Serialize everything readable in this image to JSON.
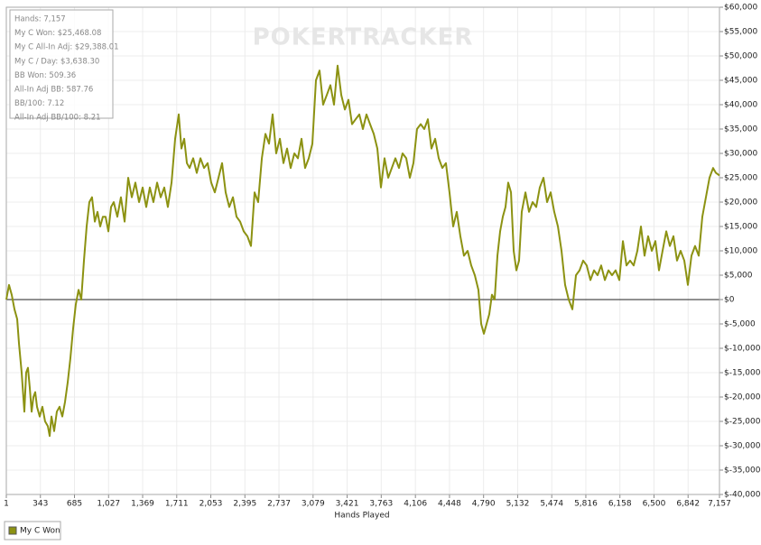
{
  "chart_data": {
    "type": "line",
    "watermark": "POKERTRACKER",
    "stats": [
      "Hands: 7,157",
      "My C Won: $25,468.08",
      "My C All-In Adj: $29,388.01",
      "My C / Day: $3,638.30",
      "BB Won: 509.36",
      "All-In Adj BB: 587.76",
      "BB/100: 7.12",
      "All-In Adj BB/100: 8.21"
    ],
    "x_label": "Hands Played",
    "x": [
      1,
      28,
      55,
      83,
      110,
      128,
      155,
      182,
      200,
      218,
      236,
      255,
      273,
      291,
      309,
      336,
      363,
      390,
      418,
      436,
      454,
      481,
      508,
      535,
      563,
      590,
      617,
      644,
      671,
      698,
      726,
      753,
      780,
      807,
      834,
      861,
      889,
      916,
      943,
      970,
      997,
      1025,
      1052,
      1079,
      1115,
      1151,
      1188,
      1224,
      1260,
      1296,
      1333,
      1369,
      1405,
      1441,
      1477,
      1514,
      1550,
      1586,
      1622,
      1659,
      1695,
      1731,
      1758,
      1786,
      1813,
      1840,
      1876,
      1912,
      1949,
      1985,
      2021,
      2057,
      2093,
      2130,
      2166,
      2202,
      2238,
      2275,
      2311,
      2347,
      2383,
      2420,
      2456,
      2492,
      2528,
      2565,
      2601,
      2637,
      2673,
      2709,
      2746,
      2782,
      2818,
      2854,
      2891,
      2927,
      2963,
      2999,
      3036,
      3072,
      3108,
      3144,
      3180,
      3217,
      3253,
      3289,
      3325,
      3362,
      3398,
      3434,
      3470,
      3506,
      3543,
      3579,
      3615,
      3651,
      3688,
      3724,
      3760,
      3796,
      3833,
      3869,
      3905,
      3941,
      3977,
      4014,
      4050,
      4086,
      4122,
      4159,
      4195,
      4231,
      4267,
      4304,
      4340,
      4376,
      4412,
      4448,
      4485,
      4521,
      4557,
      4593,
      4630,
      4666,
      4702,
      4738,
      4766,
      4793,
      4820,
      4847,
      4874,
      4901,
      4929,
      4956,
      4983,
      5010,
      5037,
      5065,
      5092,
      5119,
      5146,
      5173,
      5210,
      5246,
      5282,
      5318,
      5354,
      5391,
      5427,
      5463,
      5499,
      5536,
      5572,
      5608,
      5644,
      5681,
      5717,
      5753,
      5789,
      5825,
      5862,
      5898,
      5934,
      5970,
      6007,
      6043,
      6079,
      6115,
      6152,
      6188,
      6224,
      6260,
      6296,
      6333,
      6369,
      6405,
      6441,
      6478,
      6514,
      6550,
      6586,
      6623,
      6659,
      6695,
      6731,
      6767,
      6804,
      6840,
      6876,
      6912,
      6949,
      6985,
      7021,
      7057,
      7093,
      7121,
      7157
    ],
    "series": [
      {
        "name": "My C Won",
        "color": "#8c9212",
        "values": [
          0,
          3000,
          1000,
          -2000,
          -4000,
          -9000,
          -15000,
          -23000,
          -15000,
          -14000,
          -18000,
          -23000,
          -20000,
          -19000,
          -22000,
          -24000,
          -22000,
          -25000,
          -26000,
          -28000,
          -24000,
          -27000,
          -23000,
          -22000,
          -24000,
          -21000,
          -17000,
          -12000,
          -6000,
          -1000,
          2000,
          0,
          8000,
          15000,
          20000,
          21000,
          16000,
          18000,
          15000,
          17000,
          17000,
          14000,
          19000,
          20000,
          17000,
          21000,
          16000,
          25000,
          21000,
          24000,
          20000,
          23000,
          19000,
          23000,
          20000,
          24000,
          21000,
          23000,
          19000,
          24000,
          33000,
          38000,
          31000,
          33000,
          28000,
          27000,
          29000,
          26000,
          29000,
          27000,
          28000,
          24000,
          22000,
          25000,
          28000,
          22000,
          19000,
          21000,
          17000,
          16000,
          14000,
          13000,
          11000,
          22000,
          20000,
          29000,
          34000,
          32000,
          38000,
          30000,
          33000,
          28000,
          31000,
          27000,
          30000,
          29000,
          33000,
          27000,
          29000,
          32000,
          45000,
          47000,
          40000,
          42000,
          44000,
          40000,
          48000,
          42000,
          39000,
          41000,
          36000,
          37000,
          38000,
          35000,
          38000,
          36000,
          34000,
          31000,
          23000,
          29000,
          25000,
          27000,
          29000,
          27000,
          30000,
          29000,
          25000,
          28000,
          35000,
          36000,
          35000,
          37000,
          31000,
          33000,
          29000,
          27000,
          28000,
          22000,
          15000,
          18000,
          13000,
          9000,
          10000,
          7000,
          5000,
          2000,
          -5000,
          -7000,
          -5000,
          -3000,
          1000,
          0,
          9000,
          14000,
          17000,
          19000,
          24000,
          22000,
          10000,
          6000,
          8000,
          18000,
          22000,
          18000,
          20000,
          19000,
          23000,
          25000,
          20000,
          22000,
          18000,
          15000,
          10000,
          3000,
          0,
          -2000,
          5000,
          6000,
          8000,
          7000,
          4000,
          6000,
          5000,
          7000,
          4000,
          6000,
          5000,
          6000,
          4000,
          12000,
          7000,
          8000,
          7000,
          10000,
          15000,
          9000,
          13000,
          10000,
          12000,
          6000,
          10000,
          14000,
          11000,
          13000,
          8000,
          10000,
          8000,
          3000,
          9000,
          11000,
          9000,
          17000,
          21000,
          25000,
          27000,
          26000,
          25468
        ]
      }
    ],
    "xlim": [
      1,
      7157
    ],
    "ylim": [
      -40000,
      60000
    ],
    "xticks": [
      1,
      343,
      685,
      {
        "value": 1027,
        "label": "1,027"
      },
      {
        "value": 1369,
        "label": "1,369"
      },
      {
        "value": 1711,
        "label": "1,711"
      },
      {
        "value": 2053,
        "label": "2,053"
      },
      {
        "value": 2395,
        "label": "2,395"
      },
      {
        "value": 2737,
        "label": "2,737"
      },
      {
        "value": 3079,
        "label": "3,079"
      },
      {
        "value": 3421,
        "label": "3,421"
      },
      {
        "value": 3763,
        "label": "3,763"
      },
      {
        "value": 4106,
        "label": "4,106"
      },
      {
        "value": 4448,
        "label": "4,448"
      },
      {
        "value": 4790,
        "label": "4,790"
      },
      {
        "value": 5132,
        "label": "5,132"
      },
      {
        "value": 5474,
        "label": "5,474"
      },
      {
        "value": 5816,
        "label": "5,816"
      },
      {
        "value": 6158,
        "label": "6,158"
      },
      {
        "value": 6500,
        "label": "6,500"
      },
      {
        "value": 6842,
        "label": "6,842"
      },
      {
        "value": 7157,
        "label": "7,157"
      }
    ],
    "yticks": [
      {
        "value": -40000,
        "label": "$-40,000"
      },
      {
        "value": -35000,
        "label": "$-35,000"
      },
      {
        "value": -30000,
        "label": "$-30,000"
      },
      {
        "value": -25000,
        "label": "$-25,000"
      },
      {
        "value": -20000,
        "label": "$-20,000"
      },
      {
        "value": -15000,
        "label": "$-15,000"
      },
      {
        "value": -10000,
        "label": "$-10,000"
      },
      {
        "value": -5000,
        "label": "$-5,000"
      },
      {
        "value": 0,
        "label": "$0"
      },
      {
        "value": 5000,
        "label": "$5,000"
      },
      {
        "value": 10000,
        "label": "$10,000"
      },
      {
        "value": 15000,
        "label": "$15,000"
      },
      {
        "value": 20000,
        "label": "$20,000"
      },
      {
        "value": 25000,
        "label": "$25,000"
      },
      {
        "value": 30000,
        "label": "$30,000"
      },
      {
        "value": 35000,
        "label": "$35,000"
      },
      {
        "value": 40000,
        "label": "$40,000"
      },
      {
        "value": 45000,
        "label": "$45,000"
      },
      {
        "value": 50000,
        "label": "$50,000"
      },
      {
        "value": 55000,
        "label": "$55,000"
      },
      {
        "value": 60000,
        "label": "$60,000"
      }
    ],
    "grid": true,
    "legend_position": "bottom-left"
  }
}
